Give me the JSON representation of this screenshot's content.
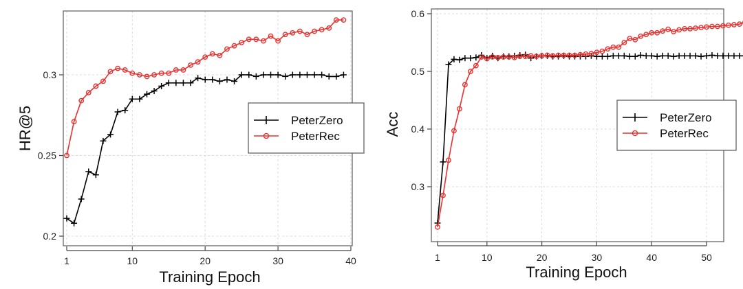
{
  "chart_data": [
    {
      "type": "line",
      "title": "",
      "xlabel": "Training Epoch",
      "ylabel": "HR@5",
      "xlim": [
        1,
        40
      ],
      "ylim": [
        0.195,
        0.343
      ],
      "xticks": [
        1,
        10,
        20,
        30,
        40
      ],
      "xtick_labels": [
        "1",
        "10",
        "20",
        "30",
        "40"
      ],
      "yticks": [
        0.2,
        0.25,
        0.3
      ],
      "ytick_labels": [
        "0.2",
        "0.25",
        "0.3"
      ],
      "grid": true,
      "legend_position": "right",
      "x": [
        1,
        2,
        3,
        4,
        5,
        6,
        7,
        8,
        9,
        10,
        11,
        12,
        13,
        14,
        15,
        16,
        17,
        18,
        19,
        20,
        21,
        22,
        23,
        24,
        25,
        26,
        27,
        28,
        29,
        30,
        31,
        32,
        33,
        34,
        35,
        36,
        37,
        38,
        39
      ],
      "series": [
        {
          "name": "PeterZero",
          "color": "#000000",
          "marker": "plus",
          "values": [
            0.211,
            0.208,
            0.223,
            0.24,
            0.238,
            0.259,
            0.263,
            0.277,
            0.278,
            0.285,
            0.285,
            0.288,
            0.29,
            0.293,
            0.295,
            0.295,
            0.295,
            0.295,
            0.298,
            0.297,
            0.297,
            0.296,
            0.297,
            0.296,
            0.3,
            0.3,
            0.299,
            0.3,
            0.3,
            0.3,
            0.299,
            0.3,
            0.3,
            0.3,
            0.3,
            0.3,
            0.299,
            0.299,
            0.3
          ]
        },
        {
          "name": "PeterRec",
          "color": "#e8312f",
          "marker": "circle",
          "values": [
            0.25,
            0.271,
            0.284,
            0.289,
            0.293,
            0.296,
            0.302,
            0.304,
            0.303,
            0.301,
            0.3,
            0.299,
            0.3,
            0.301,
            0.301,
            0.303,
            0.303,
            0.306,
            0.308,
            0.311,
            0.313,
            0.312,
            0.316,
            0.318,
            0.32,
            0.322,
            0.322,
            0.321,
            0.324,
            0.321,
            0.325,
            0.326,
            0.327,
            0.325,
            0.327,
            0.328,
            0.329,
            0.334,
            0.334
          ]
        }
      ]
    },
    {
      "type": "line",
      "title": "",
      "xlabel": "Training Epoch",
      "ylabel": "Acc",
      "xlim": [
        0,
        58
      ],
      "ylim": [
        0.206,
        0.61
      ],
      "xticks": [
        1,
        10,
        20,
        30,
        40,
        50
      ],
      "xtick_labels": [
        "1",
        "10",
        "20",
        "30",
        "40",
        "50"
      ],
      "yticks": [
        0.3,
        0.4,
        0.5,
        0.6
      ],
      "ytick_labels": [
        "0.3",
        "0.4",
        "0.5",
        "0.6"
      ],
      "grid": true,
      "legend_position": "right",
      "x": [
        1,
        2,
        3,
        4,
        5,
        6,
        7,
        8,
        9,
        10,
        11,
        12,
        13,
        14,
        15,
        16,
        17,
        18,
        19,
        20,
        21,
        22,
        23,
        24,
        25,
        26,
        27,
        28,
        29,
        30,
        31,
        32,
        33,
        34,
        35,
        36,
        37,
        38,
        39,
        40,
        41,
        42,
        43,
        44,
        45,
        46,
        47,
        48,
        49,
        50,
        51,
        52,
        53,
        54,
        55,
        56,
        57
      ],
      "series": [
        {
          "name": "PeterZero",
          "color": "#000000",
          "marker": "plus",
          "values": [
            0.237,
            0.343,
            0.512,
            0.521,
            0.52,
            0.523,
            0.523,
            0.524,
            0.528,
            0.523,
            0.527,
            0.523,
            0.526,
            0.526,
            0.527,
            0.528,
            0.529,
            0.523,
            0.526,
            0.527,
            0.527,
            0.526,
            0.526,
            0.527,
            0.526,
            0.526,
            0.526,
            0.526,
            0.527,
            0.526,
            0.526,
            0.526,
            0.527,
            0.527,
            0.527,
            0.526,
            0.526,
            0.528,
            0.527,
            0.527,
            0.526,
            0.527,
            0.527,
            0.526,
            0.527,
            0.527,
            0.527,
            0.527,
            0.526,
            0.527,
            0.528,
            0.527,
            0.527,
            0.527,
            0.527,
            0.527,
            0.527
          ]
        },
        {
          "name": "PeterRec",
          "color": "#e8312f",
          "marker": "circle",
          "values": [
            0.23,
            0.285,
            0.346,
            0.397,
            0.435,
            0.477,
            0.5,
            0.51,
            0.525,
            0.522,
            0.525,
            0.524,
            0.525,
            0.525,
            0.524,
            0.526,
            0.526,
            0.527,
            0.526,
            0.527,
            0.528,
            0.527,
            0.528,
            0.528,
            0.528,
            0.528,
            0.529,
            0.53,
            0.531,
            0.533,
            0.535,
            0.539,
            0.542,
            0.542,
            0.55,
            0.557,
            0.555,
            0.561,
            0.564,
            0.567,
            0.567,
            0.57,
            0.573,
            0.569,
            0.572,
            0.574,
            0.574,
            0.575,
            0.576,
            0.577,
            0.578,
            0.578,
            0.579,
            0.58,
            0.581,
            0.582,
            0.585
          ]
        }
      ]
    }
  ]
}
